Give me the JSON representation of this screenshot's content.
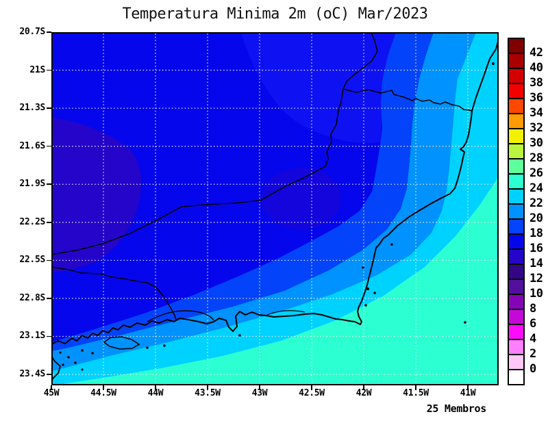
{
  "title": "Temperatura Minima 2m (oC) Mar/2023",
  "footer_note": "25 Membros",
  "axes": {
    "y_tick_labels": [
      "20.7S",
      "21S",
      "21.3S",
      "21.6S",
      "21.9S",
      "22.2S",
      "22.5S",
      "22.8S",
      "23.1S",
      "23.4S"
    ],
    "x_tick_labels": [
      "45W",
      "44.5W",
      "44W",
      "43.5W",
      "43W",
      "42.5W",
      "42W",
      "41.5W",
      "41W"
    ]
  },
  "colorbar": {
    "boundary_labels": [
      "42",
      "40",
      "38",
      "36",
      "34",
      "32",
      "30",
      "28",
      "26",
      "24",
      "22",
      "20",
      "18",
      "16",
      "14",
      "12",
      "10",
      "8",
      "6",
      "4",
      "2",
      "0"
    ],
    "cell_colors_top_to_bottom": [
      "#800000",
      "#a80000",
      "#d40000",
      "#f40000",
      "#fc4800",
      "#ff9c00",
      "#f2f200",
      "#b8f53c",
      "#60ff9e",
      "#2cffd2",
      "#00d2ff",
      "#0092ff",
      "#0343fa",
      "#0606ec",
      "#2405c9",
      "#320687",
      "#530f9e",
      "#8405b6",
      "#c409d6",
      "#fb0dfb",
      "#ff80ff",
      "#ffc8f8",
      "#ffffff"
    ]
  },
  "colors": {
    "band14": "#2405c9",
    "band16": "#0606ec",
    "band16_lighter": "#0e12f3",
    "band18": "#0343fa",
    "band20": "#0092ff",
    "band22": "#00d2ff",
    "band24": "#2cffd2",
    "coastline": "#000000",
    "grid_dots": "#eeeeee",
    "plot_border": "#000000"
  },
  "chart_data": {
    "type": "heatmap",
    "title": "Temperatura Minima 2m (oC) Mar/2023",
    "variable": "minimum 2 m temperature",
    "units": "oC",
    "period": "Mar/2023",
    "ensemble_members_label": "25 Membros",
    "x_axis": {
      "label": "longitude",
      "tick_labels": [
        "45W",
        "44.5W",
        "44W",
        "43.5W",
        "43W",
        "42.5W",
        "42W",
        "41.5W",
        "41W"
      ],
      "range": [
        "45W",
        "40.7W"
      ]
    },
    "y_axis": {
      "label": "latitude",
      "tick_labels": [
        "20.7S",
        "21S",
        "21.3S",
        "21.6S",
        "21.9S",
        "22.2S",
        "22.5S",
        "22.8S",
        "23.1S",
        "23.4S"
      ],
      "range": [
        "20.7S",
        "23.5S"
      ]
    },
    "contour_levels": [
      0,
      2,
      4,
      6,
      8,
      10,
      12,
      14,
      16,
      18,
      20,
      22,
      24,
      26,
      28,
      30,
      32,
      34,
      36,
      38,
      40,
      42
    ],
    "palette_top_to_bottom": [
      "#800000",
      "#a80000",
      "#d40000",
      "#f40000",
      "#fc4800",
      "#ff9c00",
      "#f2f200",
      "#b8f53c",
      "#60ff9e",
      "#2cffd2",
      "#00d2ff",
      "#0092ff",
      "#0343fa",
      "#0606ec",
      "#2405c9",
      "#320687",
      "#530f9e",
      "#8405b6",
      "#c409d6",
      "#fb0dfb",
      "#ff80ff",
      "#ffc8f8",
      "#ffffff"
    ],
    "visible_value_range": [
      14,
      26
    ],
    "filled_bands": [
      {
        "band": "14-16",
        "color": "#2405c9",
        "region": "patch on western edge near 44.8W between 21.6S and 22.5S"
      },
      {
        "band": "16-18",
        "color": "#0606ec",
        "region": "large region covering the northwest half of the domain"
      },
      {
        "band": "18-20",
        "color": "#0343fa",
        "region": "broad band from north-center sweeping southwest toward 45W 23.1S"
      },
      {
        "band": "20-22",
        "color": "#0092ff",
        "region": "band seaward/east of the 18-20 band"
      },
      {
        "band": "22-24",
        "color": "#00d2ff",
        "region": "coastal band along Rio de Janeiro and Espirito Santo"
      },
      {
        "band": "24-26",
        "color": "#2cffd2",
        "region": "southeast offshore corner and far-eastern coastal strip"
      }
    ],
    "grid": "dotted graticule every 0.5 deg longitude / 0.3 deg latitude",
    "legend_position": "right colorbar"
  }
}
